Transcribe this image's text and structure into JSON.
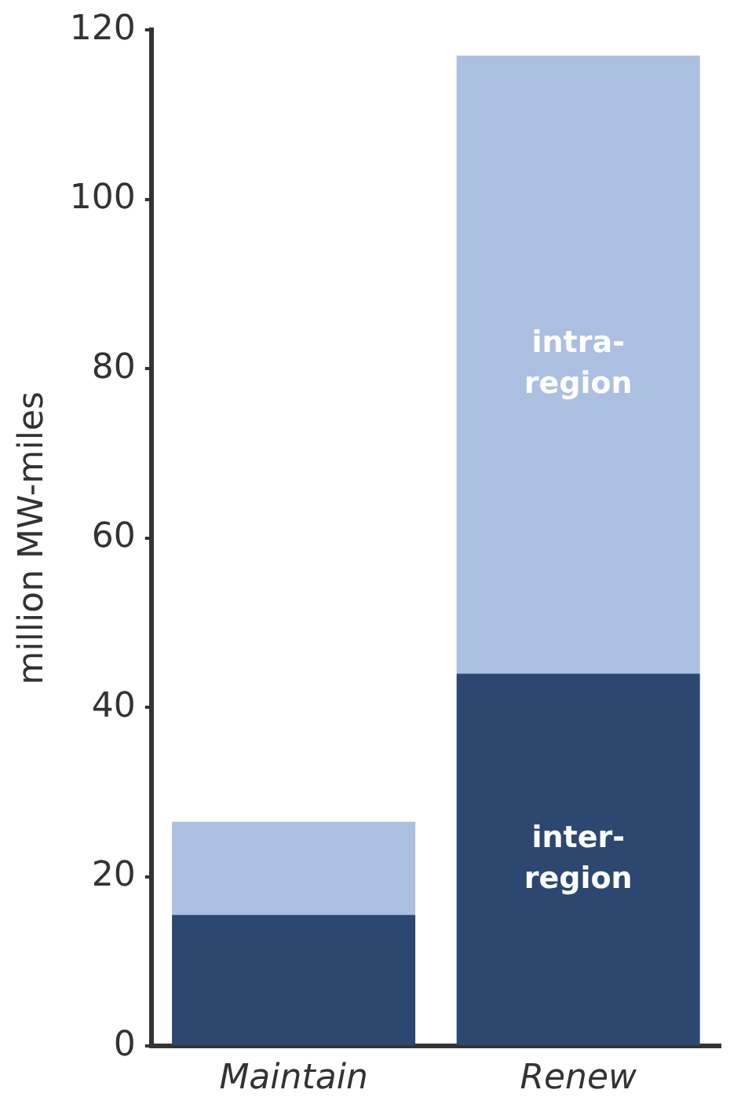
{
  "chart_data": {
    "type": "bar",
    "stacked": true,
    "ylabel": "million MW-miles",
    "categories": [
      "Maintain",
      "Renew"
    ],
    "series": [
      {
        "name": "inter-region",
        "color": "#2c4770",
        "values": [
          15.5,
          44
        ]
      },
      {
        "name": "intra-region",
        "color": "#abbfe0",
        "values": [
          11,
          73
        ]
      }
    ],
    "ylim": [
      0,
      120
    ],
    "yticks": [
      0,
      20,
      40,
      60,
      80,
      100,
      120
    ],
    "grid": false,
    "legend": false
  }
}
